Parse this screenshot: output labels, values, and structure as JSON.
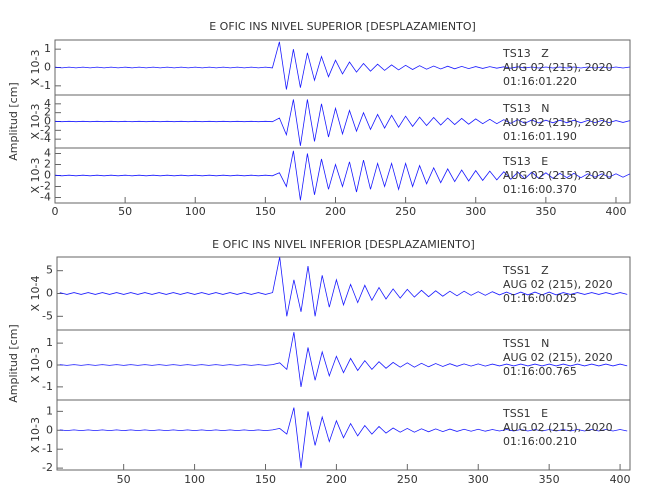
{
  "chart_data": [
    {
      "type": "line",
      "title": "E OFIC INS NIVEL SUPERIOR [DESPLAZAMIENTO]",
      "ylabel": "Amplitud [cm]",
      "xlim": [
        0,
        410
      ],
      "xticks": [
        0,
        50,
        100,
        150,
        200,
        250,
        300,
        350,
        400
      ],
      "x": [
        0,
        5,
        10,
        15,
        20,
        25,
        30,
        35,
        40,
        45,
        50,
        55,
        60,
        65,
        70,
        75,
        80,
        85,
        90,
        95,
        100,
        105,
        110,
        115,
        120,
        125,
        130,
        135,
        140,
        145,
        150,
        155,
        160,
        165,
        170,
        175,
        180,
        185,
        190,
        195,
        200,
        205,
        210,
        215,
        220,
        225,
        230,
        235,
        240,
        245,
        250,
        255,
        260,
        265,
        270,
        275,
        280,
        285,
        290,
        295,
        300,
        305,
        310,
        315,
        320,
        325,
        330,
        335,
        340,
        345,
        350,
        355,
        360,
        365,
        370,
        375,
        380,
        385,
        390,
        395,
        400,
        405,
        410
      ],
      "series": [
        {
          "name": "TS13   Z",
          "date": "AUG 02 (215), 2020",
          "time": "01:16:01.220",
          "multiplier": "X 10-3",
          "color": "#1a1aff",
          "ylim": [
            -1.5,
            1.5
          ],
          "yticks": [
            -1,
            0,
            1
          ],
          "values": [
            0.02,
            -0.02,
            0.02,
            -0.02,
            0.02,
            -0.02,
            0.02,
            -0.02,
            0.02,
            -0.02,
            0.02,
            -0.02,
            0.02,
            -0.02,
            0.02,
            -0.02,
            0.02,
            -0.02,
            0.02,
            -0.02,
            0.02,
            -0.02,
            0.02,
            -0.02,
            0.02,
            -0.02,
            0.02,
            -0.02,
            0.02,
            -0.02,
            0.02,
            -0.02,
            1.4,
            -1.2,
            1.0,
            -1.1,
            0.8,
            -0.7,
            0.6,
            -0.5,
            0.4,
            -0.35,
            0.3,
            -0.25,
            0.22,
            -0.2,
            0.18,
            -0.16,
            0.14,
            -0.13,
            0.12,
            -0.11,
            0.1,
            -0.09,
            0.08,
            -0.08,
            0.07,
            -0.07,
            0.06,
            -0.06,
            0.05,
            -0.05,
            0.05,
            -0.04,
            0.04,
            -0.04,
            0.04,
            -0.03,
            0.03,
            -0.03,
            0.03,
            -0.03,
            0.03,
            -0.03,
            0.03,
            -0.03,
            0.03,
            -0.03,
            0.03,
            -0.03,
            0.03,
            -0.03,
            0.03
          ]
        },
        {
          "name": "TS13   N",
          "date": "AUG 02 (215), 2020",
          "time": "01:16:01.190",
          "multiplier": "X 10-3",
          "color": "#1a1aff",
          "ylim": [
            -6,
            6
          ],
          "yticks": [
            -4,
            -2,
            0,
            2,
            4
          ],
          "values": [
            0.05,
            -0.05,
            0.05,
            -0.05,
            0.05,
            -0.05,
            0.05,
            -0.05,
            0.05,
            -0.05,
            0.05,
            -0.05,
            0.05,
            -0.05,
            0.05,
            -0.05,
            0.05,
            -0.05,
            0.05,
            -0.05,
            0.05,
            -0.05,
            0.05,
            -0.05,
            0.05,
            -0.05,
            0.05,
            -0.05,
            0.05,
            -0.05,
            0.05,
            -0.05,
            0.8,
            -3,
            5,
            -5.5,
            5,
            -4.5,
            4,
            -3.5,
            3,
            -2.8,
            2.5,
            -2.2,
            2,
            -1.8,
            1.6,
            -1.5,
            1.4,
            -1.3,
            1.2,
            -1.1,
            1,
            -0.9,
            0.9,
            -0.8,
            0.8,
            -0.7,
            0.7,
            -0.6,
            0.6,
            -0.5,
            0.5,
            -0.5,
            0.4,
            -0.4,
            0.4,
            -0.4,
            0.35,
            -0.35,
            0.3,
            -0.3,
            0.3,
            -0.3,
            0.3,
            -0.3,
            0.25,
            -0.25,
            0.25,
            -0.25,
            0.2,
            -0.2,
            0.2
          ]
        },
        {
          "name": "TS13   E",
          "date": "AUG 02 (215), 2020",
          "time": "01:16:00.370",
          "multiplier": "X 10-3",
          "color": "#1a1aff",
          "ylim": [
            -5,
            5
          ],
          "yticks": [
            -4,
            -2,
            0,
            2,
            4
          ],
          "values": [
            0.05,
            -0.05,
            0.05,
            -0.05,
            0.05,
            -0.05,
            0.05,
            -0.05,
            0.05,
            -0.05,
            0.05,
            -0.05,
            0.05,
            -0.05,
            0.05,
            -0.05,
            0.05,
            -0.05,
            0.05,
            -0.05,
            0.05,
            -0.05,
            0.05,
            -0.05,
            0.05,
            -0.05,
            0.05,
            -0.05,
            0.05,
            -0.05,
            0.05,
            -0.05,
            0.5,
            -2,
            4.5,
            -4.5,
            4,
            -3.5,
            3,
            -2.5,
            2,
            -2,
            2.5,
            -3,
            2.8,
            -2.5,
            2.2,
            -2,
            2.2,
            -2.5,
            2.2,
            -2,
            1.8,
            -1.5,
            1.4,
            -1.3,
            1.2,
            -1.1,
            1,
            -1,
            0.9,
            -0.9,
            0.8,
            -0.8,
            0.7,
            -0.7,
            0.6,
            -0.6,
            0.6,
            -0.5,
            0.5,
            -0.5,
            0.4,
            -0.4,
            0.4,
            -0.4,
            0.3,
            -0.3,
            0.3,
            -0.3,
            0.3,
            -0.3,
            0.3
          ]
        }
      ]
    },
    {
      "type": "line",
      "title": "E OFIC INS NIVEL INFERIOR [DESPLAZAMIENTO]",
      "ylabel": "Amplitud [cm]",
      "xlim": [
        3,
        407
      ],
      "xticks": [
        50,
        100,
        150,
        200,
        250,
        300,
        350,
        400
      ],
      "x": [
        5,
        10,
        15,
        20,
        25,
        30,
        35,
        40,
        45,
        50,
        55,
        60,
        65,
        70,
        75,
        80,
        85,
        90,
        95,
        100,
        105,
        110,
        115,
        120,
        125,
        130,
        135,
        140,
        145,
        150,
        155,
        160,
        165,
        170,
        175,
        180,
        185,
        190,
        195,
        200,
        205,
        210,
        215,
        220,
        225,
        230,
        235,
        240,
        245,
        250,
        255,
        260,
        265,
        270,
        275,
        280,
        285,
        290,
        295,
        300,
        305,
        310,
        315,
        320,
        325,
        330,
        335,
        340,
        345,
        350,
        355,
        360,
        365,
        370,
        375,
        380,
        385,
        390,
        395,
        400,
        405
      ],
      "series": [
        {
          "name": "TSS1   Z",
          "date": "AUG 02 (215), 2020",
          "time": "01:16:00.025",
          "multiplier": "X 10-4",
          "color": "#1a1aff",
          "ylim": [
            -8,
            8
          ],
          "yticks": [
            -5,
            0,
            5
          ],
          "values": [
            0.2,
            -0.2,
            0.2,
            -0.2,
            0.2,
            -0.2,
            0.2,
            -0.2,
            0.2,
            -0.2,
            0.2,
            -0.2,
            0.2,
            -0.2,
            0.2,
            -0.2,
            0.2,
            -0.2,
            0.2,
            -0.2,
            0.2,
            -0.2,
            0.2,
            -0.2,
            0.2,
            -0.2,
            0.2,
            -0.2,
            0.2,
            -0.2,
            0.2,
            8,
            -5,
            3,
            -4,
            6,
            -5,
            4,
            -3,
            3,
            -2.5,
            2,
            -2,
            1.8,
            -1.5,
            1.3,
            -1.2,
            1,
            -1,
            0.9,
            -0.8,
            0.7,
            -0.7,
            0.6,
            -0.6,
            0.5,
            -0.5,
            0.5,
            -0.4,
            0.4,
            -0.4,
            0.4,
            -0.3,
            0.3,
            -0.3,
            0.3,
            -0.3,
            0.3,
            -0.3,
            0.3,
            -0.3,
            0.2,
            -0.2,
            0.2,
            -0.2,
            0.2,
            -0.2,
            0.2,
            -0.2,
            0.2,
            -0.2
          ]
        },
        {
          "name": "TSS1   N",
          "date": "AUG 02 (215), 2020",
          "time": "01:16:00.765",
          "multiplier": "X 10-3",
          "color": "#1a1aff",
          "ylim": [
            -1.6,
            1.6
          ],
          "yticks": [
            -1,
            0,
            1
          ],
          "values": [
            0.02,
            -0.02,
            0.02,
            -0.02,
            0.02,
            -0.02,
            0.02,
            -0.02,
            0.02,
            -0.02,
            0.02,
            -0.02,
            0.02,
            -0.02,
            0.02,
            -0.02,
            0.02,
            -0.02,
            0.02,
            -0.02,
            0.02,
            -0.02,
            0.02,
            -0.02,
            0.02,
            -0.02,
            0.02,
            -0.02,
            0.02,
            -0.02,
            0.02,
            0.1,
            -0.2,
            1.5,
            -1,
            0.8,
            -0.7,
            0.6,
            -0.5,
            0.4,
            -0.35,
            0.3,
            -0.25,
            0.2,
            -0.2,
            0.15,
            -0.15,
            0.12,
            -0.1,
            0.1,
            -0.1,
            0.08,
            -0.08,
            0.07,
            -0.07,
            0.06,
            -0.06,
            0.05,
            -0.05,
            0.05,
            -0.05,
            0.04,
            -0.04,
            0.04,
            -0.04,
            0.04,
            -0.04,
            0.04,
            -0.04,
            0.04,
            -0.04,
            0.04,
            -0.04,
            0.04,
            -0.04,
            0.04,
            -0.04,
            0.04,
            -0.04,
            0.04,
            -0.04
          ]
        },
        {
          "name": "TSS1   E",
          "date": "AUG 02 (215), 2020",
          "time": "01:16:00.210",
          "multiplier": "X 10-3",
          "color": "#1a1aff",
          "ylim": [
            -2.1,
            1.6
          ],
          "yticks": [
            -2,
            -1,
            0,
            1
          ],
          "values": [
            0.02,
            -0.02,
            0.02,
            -0.02,
            0.02,
            -0.02,
            0.02,
            -0.02,
            0.02,
            -0.02,
            0.02,
            -0.02,
            0.02,
            -0.02,
            0.02,
            -0.02,
            0.02,
            -0.02,
            0.02,
            -0.02,
            0.02,
            -0.02,
            0.02,
            -0.02,
            0.02,
            -0.02,
            0.02,
            -0.02,
            0.02,
            -0.02,
            0.02,
            0.1,
            -0.2,
            1.2,
            -2,
            1,
            -0.8,
            0.7,
            -0.6,
            0.5,
            -0.4,
            0.35,
            -0.3,
            0.25,
            -0.2,
            0.2,
            -0.15,
            0.12,
            -0.1,
            0.1,
            -0.1,
            0.08,
            -0.08,
            0.07,
            -0.07,
            0.06,
            -0.06,
            0.05,
            -0.05,
            0.05,
            -0.05,
            0.04,
            -0.04,
            0.04,
            -0.04,
            0.04,
            -0.04,
            0.04,
            -0.04,
            0.04,
            -0.04,
            0.04,
            -0.04,
            0.04,
            -0.04,
            0.04,
            -0.04,
            0.04,
            -0.04,
            0.04,
            -0.04
          ]
        }
      ]
    }
  ]
}
